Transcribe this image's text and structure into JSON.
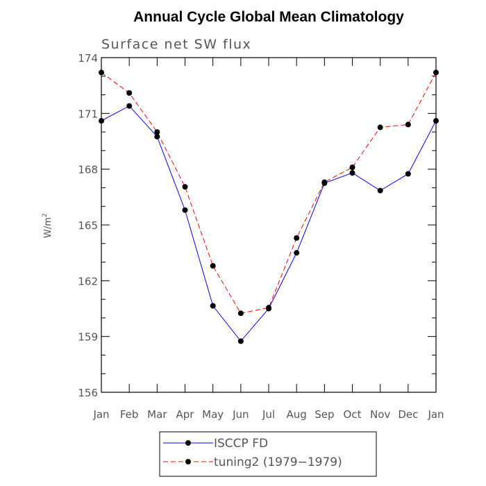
{
  "chart_data": {
    "type": "line",
    "title": "Annual Cycle Global Mean Climatology",
    "subtitle": "Surface net SW flux",
    "ylabel": "W/m",
    "ylabel_superscript": "2",
    "xlabel": "",
    "categories": [
      "Jan",
      "Feb",
      "Mar",
      "Apr",
      "May",
      "Jun",
      "Jul",
      "Aug",
      "Sep",
      "Oct",
      "Nov",
      "Dec",
      "Jan"
    ],
    "y_ticks": [
      "156",
      "159",
      "162",
      "165",
      "168",
      "171",
      "174"
    ],
    "ylim": [
      156,
      174
    ],
    "grid": false,
    "legend_position": "bottom",
    "series": [
      {
        "name": "ISCCP FD",
        "color": "#0000ff",
        "line_style": "solid",
        "marker": "circle",
        "values": [
          170.6,
          171.4,
          169.75,
          165.8,
          160.65,
          158.75,
          160.5,
          163.5,
          167.25,
          167.8,
          166.85,
          167.75,
          170.6
        ]
      },
      {
        "name": "tuning2 (1979−1979)",
        "color": "#ff0000",
        "line_style": "dashed",
        "marker": "circle",
        "values": [
          173.2,
          172.1,
          170.0,
          167.05,
          162.8,
          160.25,
          160.55,
          164.3,
          167.3,
          168.1,
          170.25,
          170.4,
          173.2
        ]
      }
    ]
  }
}
